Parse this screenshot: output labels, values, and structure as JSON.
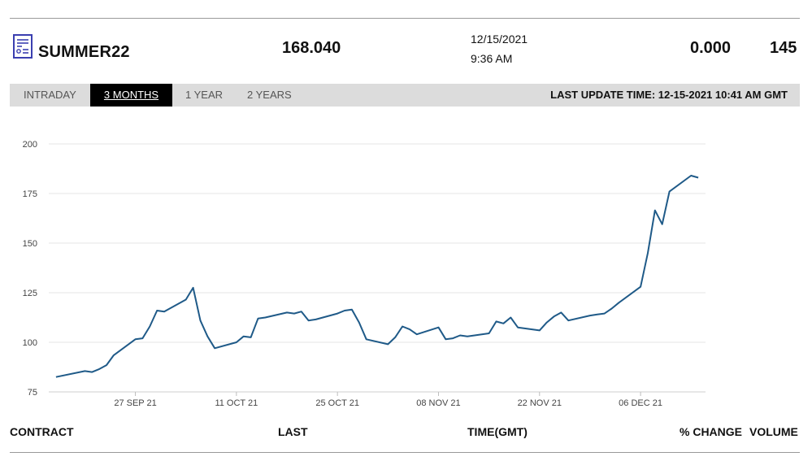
{
  "header": {
    "icon": "document-chart-icon",
    "contract": "SUMMER22",
    "last": "168.040",
    "date": "12/15/2021",
    "time": "9:36 AM",
    "change": "0.000",
    "volume": "145"
  },
  "tabs": [
    {
      "label": "INTRADAY",
      "active": false
    },
    {
      "label": "3 MONTHS",
      "active": true
    },
    {
      "label": "1 YEAR",
      "active": false
    },
    {
      "label": "2 YEARS",
      "active": false
    }
  ],
  "last_update": "LAST UPDATE TIME: 12-15-2021 10:41 AM GMT",
  "columns": {
    "contract": "CONTRACT",
    "last": "LAST",
    "time": "TIME(GMT)",
    "change": "% CHANGE",
    "volume": "VOLUME"
  },
  "colors": {
    "line": "#1f5a88",
    "grid": "#e6e6e6",
    "tabbar": "#dcdcdc",
    "active_tab": "#000000"
  },
  "chart_data": {
    "type": "line",
    "title": "",
    "xlabel": "",
    "ylabel": "",
    "ylim": [
      75,
      200
    ],
    "yticks": [
      75,
      100,
      125,
      150,
      175,
      200
    ],
    "xlim": [
      "2021-09-15",
      "2021-12-15"
    ],
    "xticks": [
      {
        "date": "2021-09-27",
        "label": "27 SEP 21"
      },
      {
        "date": "2021-10-11",
        "label": "11 OCT 21"
      },
      {
        "date": "2021-10-25",
        "label": "25 OCT 21"
      },
      {
        "date": "2021-11-08",
        "label": "08 NOV 21"
      },
      {
        "date": "2021-11-22",
        "label": "22 NOV 21"
      },
      {
        "date": "2021-12-06",
        "label": "06 DEC 21"
      }
    ],
    "grid": true,
    "series": [
      {
        "x": [
          "2021-09-16",
          "2021-09-20",
          "2021-09-21",
          "2021-09-22",
          "2021-09-23",
          "2021-09-24",
          "2021-09-27",
          "2021-09-28",
          "2021-09-29",
          "2021-09-30",
          "2021-10-01",
          "2021-10-04",
          "2021-10-05",
          "2021-10-06",
          "2021-10-07",
          "2021-10-08",
          "2021-10-11",
          "2021-10-12",
          "2021-10-13",
          "2021-10-14",
          "2021-10-15",
          "2021-10-18",
          "2021-10-19",
          "2021-10-20",
          "2021-10-21",
          "2021-10-22",
          "2021-10-25",
          "2021-10-26",
          "2021-10-27",
          "2021-10-28",
          "2021-10-29",
          "2021-11-01",
          "2021-11-02",
          "2021-11-03",
          "2021-11-04",
          "2021-11-05",
          "2021-11-08",
          "2021-11-09",
          "2021-11-10",
          "2021-11-11",
          "2021-11-12",
          "2021-11-15",
          "2021-11-16",
          "2021-11-17",
          "2021-11-18",
          "2021-11-19",
          "2021-11-22",
          "2021-11-23",
          "2021-11-24",
          "2021-11-25",
          "2021-11-26",
          "2021-11-29",
          "2021-11-30",
          "2021-12-01",
          "2021-12-02",
          "2021-12-03",
          "2021-12-06",
          "2021-12-07",
          "2021-12-08",
          "2021-12-09",
          "2021-12-10",
          "2021-12-13",
          "2021-12-14"
        ],
        "values": [
          82.5,
          85.5,
          85.0,
          86.5,
          88.5,
          93.5,
          101.5,
          102.0,
          108.0,
          116.0,
          115.5,
          121.5,
          127.5,
          111.0,
          103.0,
          97.0,
          100.0,
          103.0,
          102.5,
          112.0,
          112.5,
          115.0,
          114.5,
          115.5,
          111.0,
          111.5,
          114.5,
          116.0,
          116.5,
          110.0,
          101.5,
          99.0,
          102.5,
          108.0,
          106.5,
          104.0,
          107.5,
          101.5,
          102.0,
          103.5,
          103.0,
          104.5,
          110.5,
          109.5,
          112.5,
          107.5,
          106.0,
          110.0,
          113.0,
          115.0,
          111.0,
          113.5,
          114.0,
          114.5,
          117.0,
          120.0,
          128.0,
          145.0,
          166.5,
          159.5,
          176.0,
          184.0,
          183.0
        ]
      }
    ]
  }
}
